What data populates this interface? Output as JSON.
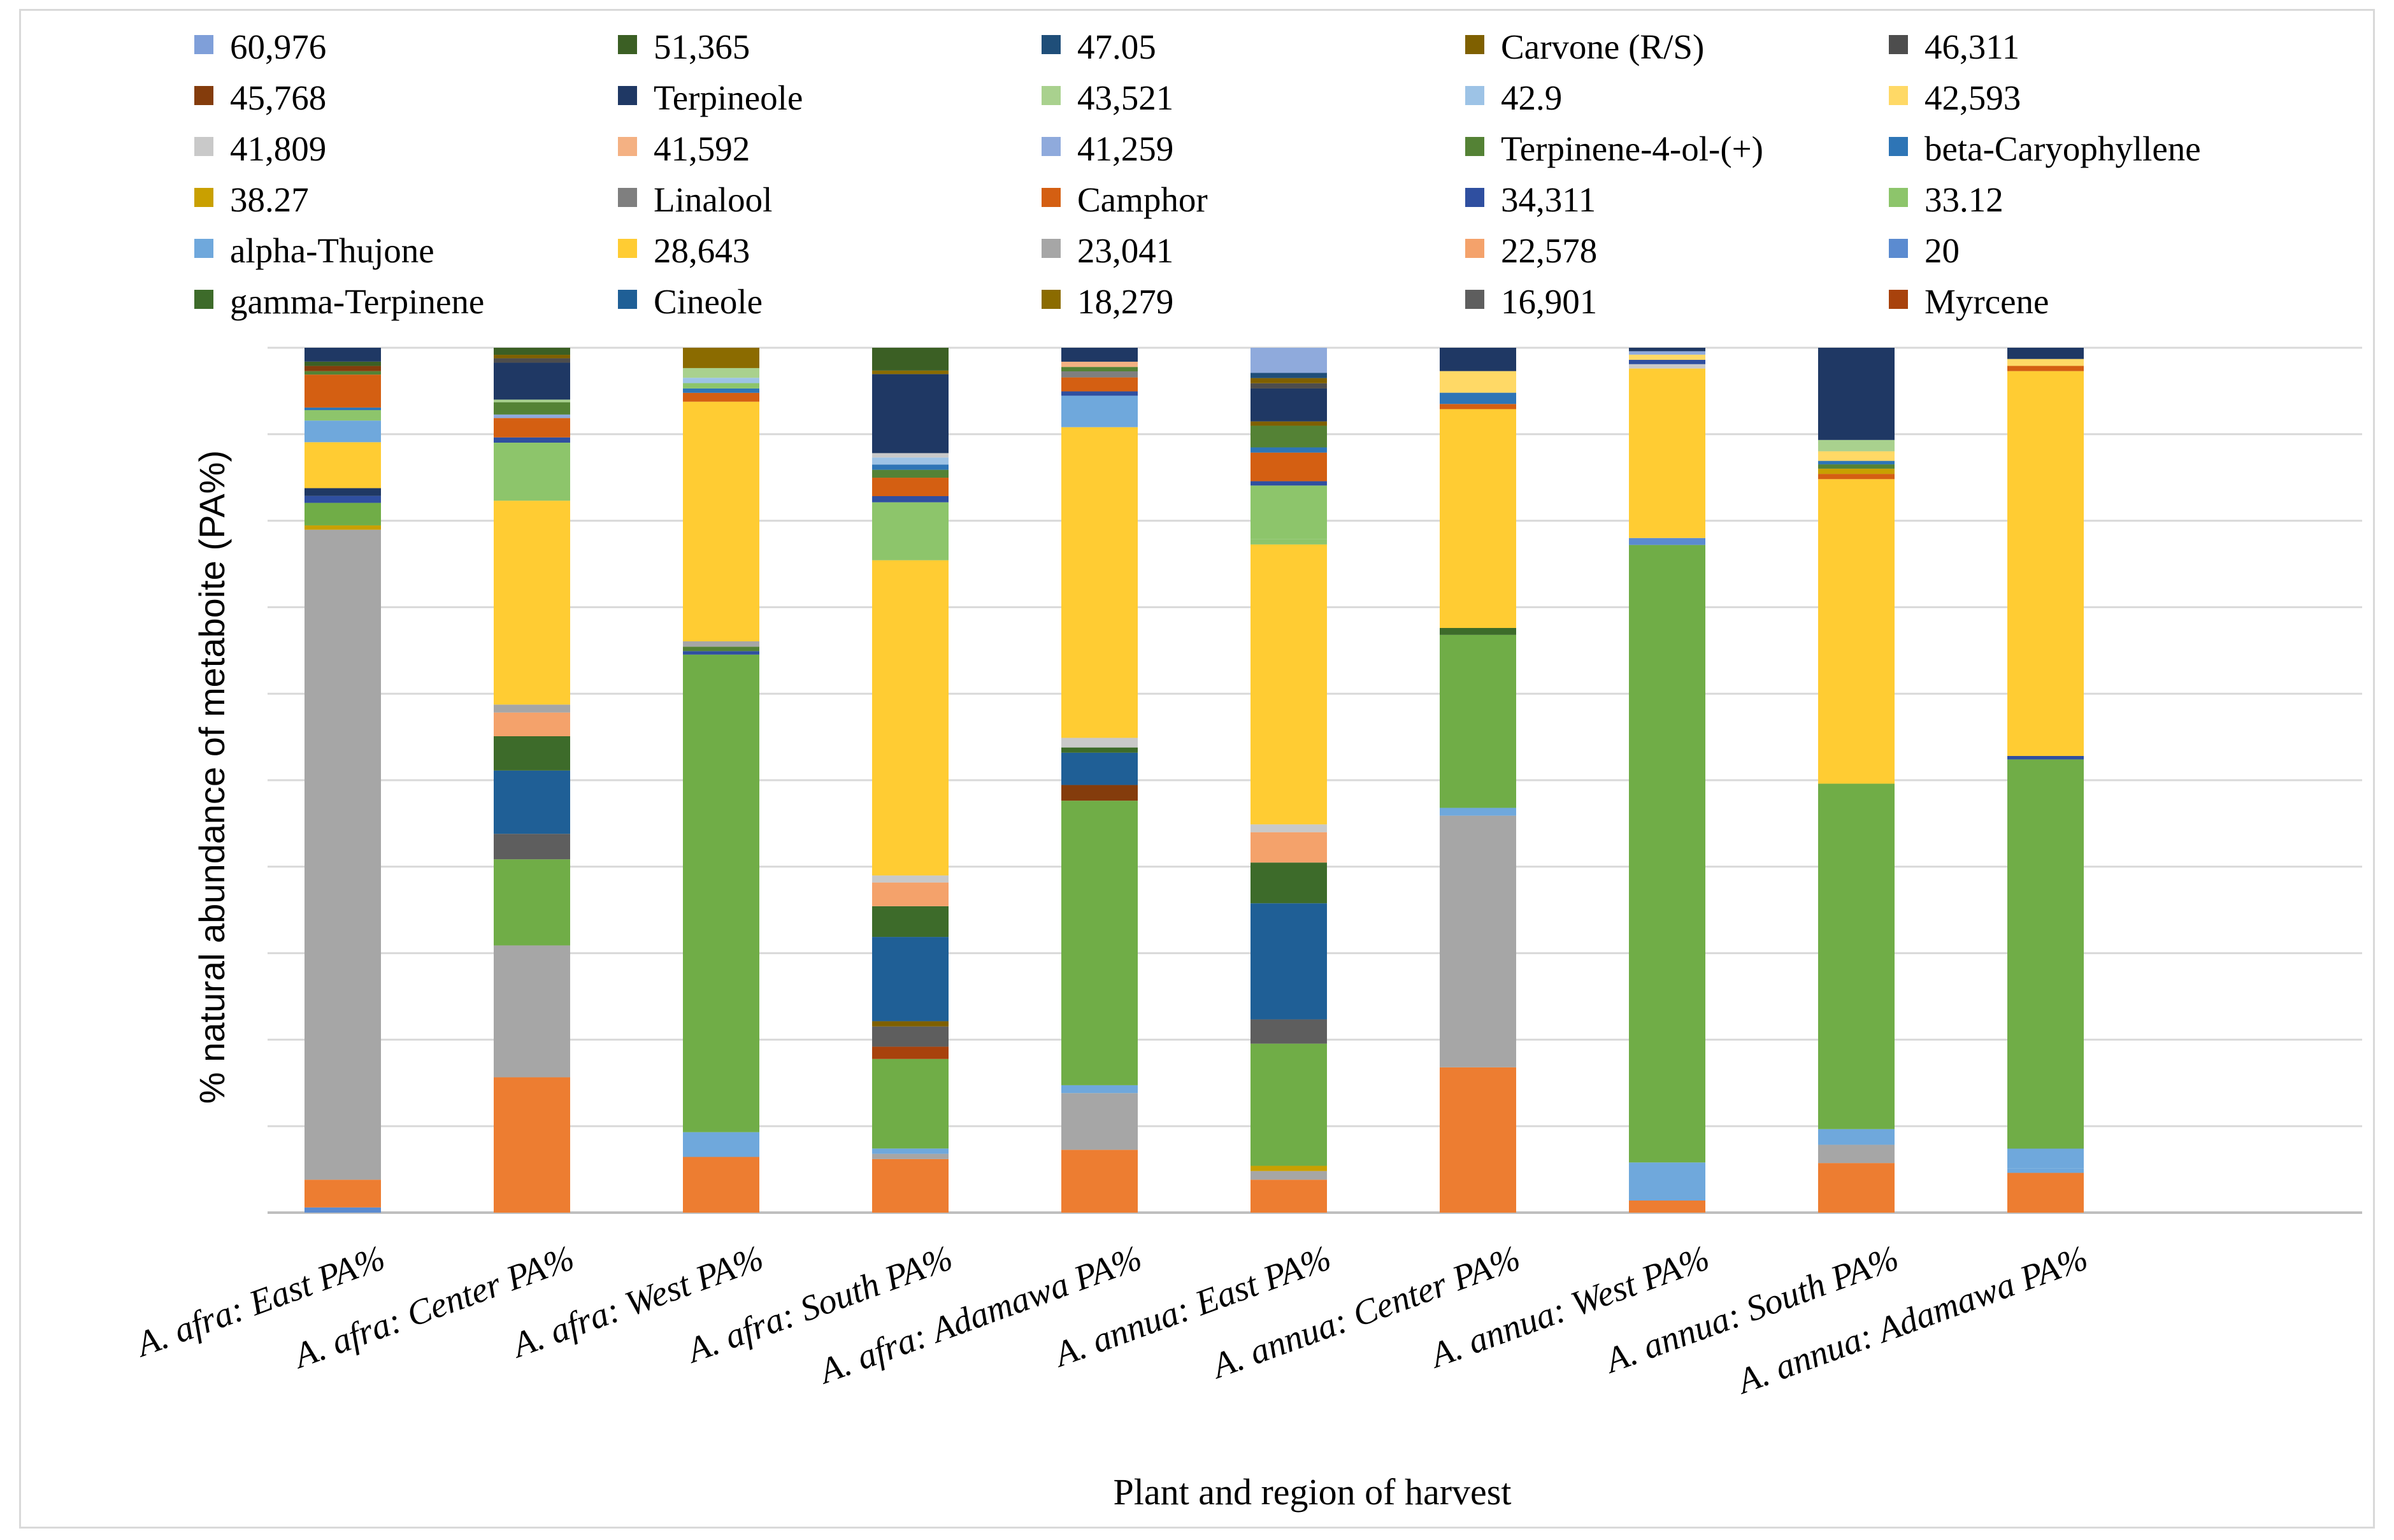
{
  "chart_data": {
    "type": "stacked-bar-100",
    "title": "",
    "xlabel": "Plant and region of harvest",
    "ylabel": "% natural abundance of metaboite  (PA%)",
    "ylim": [
      0,
      100
    ],
    "grid": true,
    "legend_position": "top",
    "categories": [
      "A. afra: East PA%",
      "A. afra: Center PA%",
      "A. afra: West PA%",
      "A. afra: South PA%",
      "A. afra: Adamawa PA%",
      "A. annua: East PA%",
      "A. annua: Center PA%",
      "A. annua: West PA%",
      "A. annua: South PA%",
      "A. annua: Adamawa PA%"
    ],
    "legend": [
      {
        "name": "60,976",
        "color": "#7F9FD9"
      },
      {
        "name": "51,365",
        "color": "#3B5F24"
      },
      {
        "name": "47.05",
        "color": "#1F4E79"
      },
      {
        "name": "Carvone (R/S)",
        "color": "#7F6000"
      },
      {
        "name": "46,311",
        "color": "#4D4D4D"
      },
      {
        "name": "45,768",
        "color": "#843C0C"
      },
      {
        "name": "Terpineole",
        "color": "#1F3864"
      },
      {
        "name": "43,521",
        "color": "#A9D18E"
      },
      {
        "name": "42.9",
        "color": "#9DC3E6"
      },
      {
        "name": "42,593",
        "color": "#FFD966"
      },
      {
        "name": "41,809",
        "color": "#C9C9C9"
      },
      {
        "name": "41,592",
        "color": "#F4B183"
      },
      {
        "name": "41,259",
        "color": "#8FAADC"
      },
      {
        "name": "Terpinene-4-ol-(+)",
        "color": "#548235"
      },
      {
        "name": "beta-Caryophyllene",
        "color": "#2E75B6"
      },
      {
        "name": "38.27",
        "color": "#C9A000"
      },
      {
        "name": "Linalool",
        "color": "#7F7F7F"
      },
      {
        "name": "Camphor",
        "color": "#D45F12"
      },
      {
        "name": "34,311",
        "color": "#2F4FA0"
      },
      {
        "name": "33.12",
        "color": "#8DC56B"
      },
      {
        "name": "alpha-Thujone",
        "color": "#6FA8DC"
      },
      {
        "name": "28,643",
        "color": "#FFCC33"
      },
      {
        "name": "23,041",
        "color": "#A6A6A6"
      },
      {
        "name": "22,578",
        "color": "#F4A26B"
      },
      {
        "name": "20",
        "color": "#5B8BD0"
      },
      {
        "name": "gamma-Terpinene",
        "color": "#3D6B2A"
      },
      {
        "name": "Cineole",
        "color": "#1F5F96"
      },
      {
        "name": "18,279",
        "color": "#8B6B00"
      },
      {
        "name": "16,901",
        "color": "#5E5E5E"
      },
      {
        "name": "Myrcene",
        "color": "#A8420C"
      }
    ],
    "extra_series_colors": {
      "bottom_orange": "#ED7D31",
      "main_green": "#70AD47"
    },
    "stacks": [
      [
        {
          "c": "#5B8BD0",
          "v": 0.6
        },
        {
          "c": "#ED7D31",
          "v": 3.2
        },
        {
          "c": "#A6A6A6",
          "v": 75
        },
        {
          "c": "#C9A000",
          "v": 0.5
        },
        {
          "c": "#70AD47",
          "v": 2.6
        },
        {
          "c": "#2F4FA0",
          "v": 0.8
        },
        {
          "c": "#1F3864",
          "v": 0.9
        },
        {
          "c": "#FFCC33",
          "v": 5.3
        },
        {
          "c": "#6FA8DC",
          "v": 2.5
        },
        {
          "c": "#8DC56B",
          "v": 1.2
        },
        {
          "c": "#2E75B6",
          "v": 0.3
        },
        {
          "c": "#D45F12",
          "v": 3.8
        },
        {
          "c": "#548235",
          "v": 0.4
        },
        {
          "c": "#843C0C",
          "v": 0.6
        },
        {
          "c": "#3B5F24",
          "v": 0.5
        },
        {
          "c": "#1F3864",
          "v": 1.6
        }
      ],
      [
        {
          "c": "#ED7D31",
          "v": 15.4
        },
        {
          "c": "#A6A6A6",
          "v": 15.0
        },
        {
          "c": "#70AD47",
          "v": 9.8
        },
        {
          "c": "#5E5E5E",
          "v": 2.9
        },
        {
          "c": "#1F5F96",
          "v": 7.2
        },
        {
          "c": "#3D6B2A",
          "v": 3.9
        },
        {
          "c": "#F4A26B",
          "v": 2.7
        },
        {
          "c": "#A6A6A6",
          "v": 0.9
        },
        {
          "c": "#FFCC33",
          "v": 23.2
        },
        {
          "c": "#8DC56B",
          "v": 6.6
        },
        {
          "c": "#2F4FA0",
          "v": 0.6
        },
        {
          "c": "#D45F12",
          "v": 2.2
        },
        {
          "c": "#8FAADC",
          "v": 0.4
        },
        {
          "c": "#548235",
          "v": 1.4
        },
        {
          "c": "#A9D18E",
          "v": 0.3
        },
        {
          "c": "#1F3864",
          "v": 4.2
        },
        {
          "c": "#4D4D4D",
          "v": 0.5
        },
        {
          "c": "#7F6000",
          "v": 0.4
        },
        {
          "c": "#3B5F24",
          "v": 0.8
        }
      ],
      [
        {
          "c": "#ED7D31",
          "v": 6.3
        },
        {
          "c": "#6FA8DC",
          "v": 2.8
        },
        {
          "c": "#70AD47",
          "v": 54.0
        },
        {
          "c": "#2F4FA0",
          "v": 0.4
        },
        {
          "c": "#548235",
          "v": 0.5
        },
        {
          "c": "#A6A6A6",
          "v": 0.6
        },
        {
          "c": "#FFCC33",
          "v": 27.1
        },
        {
          "c": "#D45F12",
          "v": 1.0
        },
        {
          "c": "#2E75B6",
          "v": 0.5
        },
        {
          "c": "#8DC56B",
          "v": 0.6
        },
        {
          "c": "#9DC3E6",
          "v": 0.6
        },
        {
          "c": "#A9D18E",
          "v": 1.1
        },
        {
          "c": "#8B6B00",
          "v": 2.3
        }
      ],
      [
        {
          "c": "#ED7D31",
          "v": 6.1
        },
        {
          "c": "#A6A6A6",
          "v": 0.6
        },
        {
          "c": "#6FA8DC",
          "v": 0.6
        },
        {
          "c": "#70AD47",
          "v": 10.2
        },
        {
          "c": "#A8420C",
          "v": 1.4
        },
        {
          "c": "#5E5E5E",
          "v": 2.3
        },
        {
          "c": "#7F6000",
          "v": 0.6
        },
        {
          "c": "#1F5F96",
          "v": 9.6
        },
        {
          "c": "#3D6B2A",
          "v": 3.5
        },
        {
          "c": "#F4A26B",
          "v": 2.7
        },
        {
          "c": "#C9C9C9",
          "v": 0.8
        },
        {
          "c": "#FFCC33",
          "v": 35.9
        },
        {
          "c": "#8DC56B",
          "v": 6.6
        },
        {
          "c": "#2F4FA0",
          "v": 0.7
        },
        {
          "c": "#D45F12",
          "v": 2.1
        },
        {
          "c": "#548235",
          "v": 0.9
        },
        {
          "c": "#2E75B6",
          "v": 0.6
        },
        {
          "c": "#9DC3E6",
          "v": 0.8
        },
        {
          "c": "#C9C9C9",
          "v": 0.5
        },
        {
          "c": "#1F3864",
          "v": 9.0
        },
        {
          "c": "#8B6B00",
          "v": 0.4
        },
        {
          "c": "#3B5F24",
          "v": 2.6
        }
      ],
      [
        {
          "c": "#ED7D31",
          "v": 7.2
        },
        {
          "c": "#A6A6A6",
          "v": 6.5
        },
        {
          "c": "#6FA8DC",
          "v": 0.9
        },
        {
          "c": "#70AD47",
          "v": 32.6
        },
        {
          "c": "#843C0C",
          "v": 1.8
        },
        {
          "c": "#1F5F96",
          "v": 3.7
        },
        {
          "c": "#3D6B2A",
          "v": 0.6
        },
        {
          "c": "#C9C9C9",
          "v": 1.1
        },
        {
          "c": "#FFCC33",
          "v": 35.6
        },
        {
          "c": "#6FA8DC",
          "v": 3.6
        },
        {
          "c": "#2F4FA0",
          "v": 0.5
        },
        {
          "c": "#D45F12",
          "v": 1.6
        },
        {
          "c": "#7F7F7F",
          "v": 0.7
        },
        {
          "c": "#548235",
          "v": 0.5
        },
        {
          "c": "#F4B183",
          "v": 0.6
        },
        {
          "c": "#1F3864",
          "v": 1.6
        }
      ],
      [
        {
          "c": "#ED7D31",
          "v": 3.8
        },
        {
          "c": "#A6A6A6",
          "v": 1.0
        },
        {
          "c": "#C9A000",
          "v": 0.6
        },
        {
          "c": "#70AD47",
          "v": 14.1
        },
        {
          "c": "#5E5E5E",
          "v": 2.8
        },
        {
          "c": "#1F5F96",
          "v": 13.4
        },
        {
          "c": "#3D6B2A",
          "v": 4.7
        },
        {
          "c": "#F4A26B",
          "v": 3.5
        },
        {
          "c": "#C9C9C9",
          "v": 0.9
        },
        {
          "c": "#FFCC33",
          "v": 32.3
        },
        {
          "c": "#8DC56B",
          "v": 0.6
        },
        {
          "c": "#8DC56B",
          "v": 6.2
        },
        {
          "c": "#2F4FA0",
          "v": 0.5
        },
        {
          "c": "#D45F12",
          "v": 3.3
        },
        {
          "c": "#2E75B6",
          "v": 0.6
        },
        {
          "c": "#548235",
          "v": 2.5
        },
        {
          "c": "#7F6000",
          "v": 0.5
        },
        {
          "c": "#1F3864",
          "v": 3.8
        },
        {
          "c": "#4D4D4D",
          "v": 0.6
        },
        {
          "c": "#7F6000",
          "v": 0.6
        },
        {
          "c": "#1F4E79",
          "v": 0.6
        },
        {
          "c": "#8FAADC",
          "v": 2.9
        }
      ],
      [
        {
          "c": "#ED7D31",
          "v": 16.8
        },
        {
          "c": "#A6A6A6",
          "v": 29.1
        },
        {
          "c": "#6FA8DC",
          "v": 0.9
        },
        {
          "c": "#70AD47",
          "v": 20.0
        },
        {
          "c": "#3D6B2A",
          "v": 0.8
        },
        {
          "c": "#FFCC33",
          "v": 25.3
        },
        {
          "c": "#D45F12",
          "v": 0.6
        },
        {
          "c": "#2E75B6",
          "v": 1.3
        },
        {
          "c": "#FFD966",
          "v": 2.5
        },
        {
          "c": "#1F3864",
          "v": 2.7
        }
      ],
      [
        {
          "c": "#ED7D31",
          "v": 1.4
        },
        {
          "c": "#6FA8DC",
          "v": 4.4
        },
        {
          "c": "#70AD47",
          "v": 71.4
        },
        {
          "c": "#5B8BD0",
          "v": 0.8
        },
        {
          "c": "#FFCC33",
          "v": 19.6
        },
        {
          "c": "#C9C9C9",
          "v": 0.5
        },
        {
          "c": "#2F4FA0",
          "v": 0.5
        },
        {
          "c": "#FFD966",
          "v": 0.6
        },
        {
          "c": "#8FAADC",
          "v": 0.4
        },
        {
          "c": "#1F3864",
          "v": 0.4
        }
      ],
      [
        {
          "c": "#ED7D31",
          "v": 5.7
        },
        {
          "c": "#A6A6A6",
          "v": 2.1
        },
        {
          "c": "#6FA8DC",
          "v": 1.8
        },
        {
          "c": "#70AD47",
          "v": 39.7
        },
        {
          "c": "#FFCC33",
          "v": 35.0
        },
        {
          "c": "#D45F12",
          "v": 0.6
        },
        {
          "c": "#C9A000",
          "v": 0.6
        },
        {
          "c": "#548235",
          "v": 0.5
        },
        {
          "c": "#2E75B6",
          "v": 0.4
        },
        {
          "c": "#FFD966",
          "v": 1.1
        },
        {
          "c": "#A9D18E",
          "v": 1.3
        },
        {
          "c": "#1F3864",
          "v": 10.6
        }
      ],
      [
        {
          "c": "#ED7D31",
          "v": 4.6
        },
        {
          "c": "#6FA8DC",
          "v": 0.5
        },
        {
          "c": "#6FA8DC",
          "v": 2.3
        },
        {
          "c": "#70AD47",
          "v": 45.0
        },
        {
          "c": "#2F4FA0",
          "v": 0.4
        },
        {
          "c": "#FFCC33",
          "v": 44.5
        },
        {
          "c": "#D45F12",
          "v": 0.6
        },
        {
          "c": "#FFD966",
          "v": 0.8
        },
        {
          "c": "#1F3864",
          "v": 1.3
        }
      ]
    ]
  }
}
